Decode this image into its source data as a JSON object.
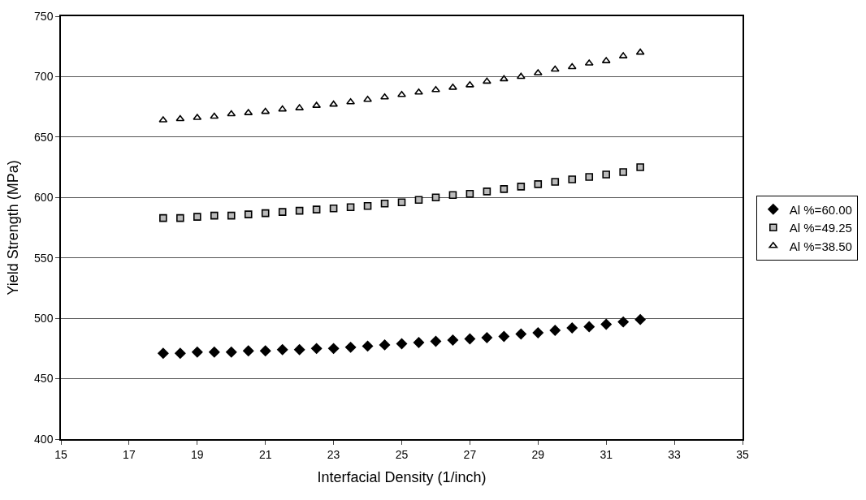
{
  "chart_data": {
    "type": "scatter",
    "xlabel": "Interfacial Density (1/inch)",
    "ylabel": "Yield Strength (MPa)",
    "x": [
      18,
      18.5,
      19,
      19.5,
      20,
      20.5,
      21,
      21.5,
      22,
      22.5,
      23,
      23.5,
      24,
      24.5,
      25,
      25.5,
      26,
      26.5,
      27,
      27.5,
      28,
      28.5,
      29,
      29.5,
      30,
      30.5,
      31,
      31.5,
      32
    ],
    "series": [
      {
        "name": "Al %=60.00",
        "color": "#000000",
        "marker": "diamond",
        "values": [
          471,
          471,
          472,
          472,
          472,
          473,
          473,
          474,
          474,
          475,
          475,
          476,
          477,
          478,
          479,
          480,
          481,
          482,
          483,
          484,
          485,
          487,
          488,
          490,
          492,
          493,
          495,
          497,
          499
        ]
      },
      {
        "name": "Al %=49.25",
        "color": "#000000",
        "marker": "square",
        "values": [
          583,
          583,
          584,
          585,
          585,
          586,
          587,
          588,
          589,
          590,
          591,
          592,
          593,
          595,
          596,
          598,
          600,
          602,
          603,
          605,
          607,
          609,
          611,
          613,
          615,
          617,
          619,
          621,
          625
        ]
      },
      {
        "name": "Al %=38.50",
        "color": "#000000",
        "marker": "triangle",
        "values": [
          664,
          665,
          666,
          667,
          669,
          670,
          671,
          673,
          674,
          676,
          677,
          679,
          681,
          683,
          685,
          687,
          689,
          691,
          693,
          696,
          698,
          700,
          703,
          706,
          708,
          711,
          713,
          717,
          720
        ]
      }
    ],
    "xlim": [
      15,
      35
    ],
    "xticks": [
      15,
      17,
      19,
      21,
      23,
      25,
      27,
      29,
      31,
      33,
      35
    ],
    "ylim": [
      400,
      750
    ],
    "yticks": [
      400,
      450,
      500,
      550,
      600,
      650,
      700,
      750
    ],
    "grid": "y",
    "legend": "right"
  }
}
